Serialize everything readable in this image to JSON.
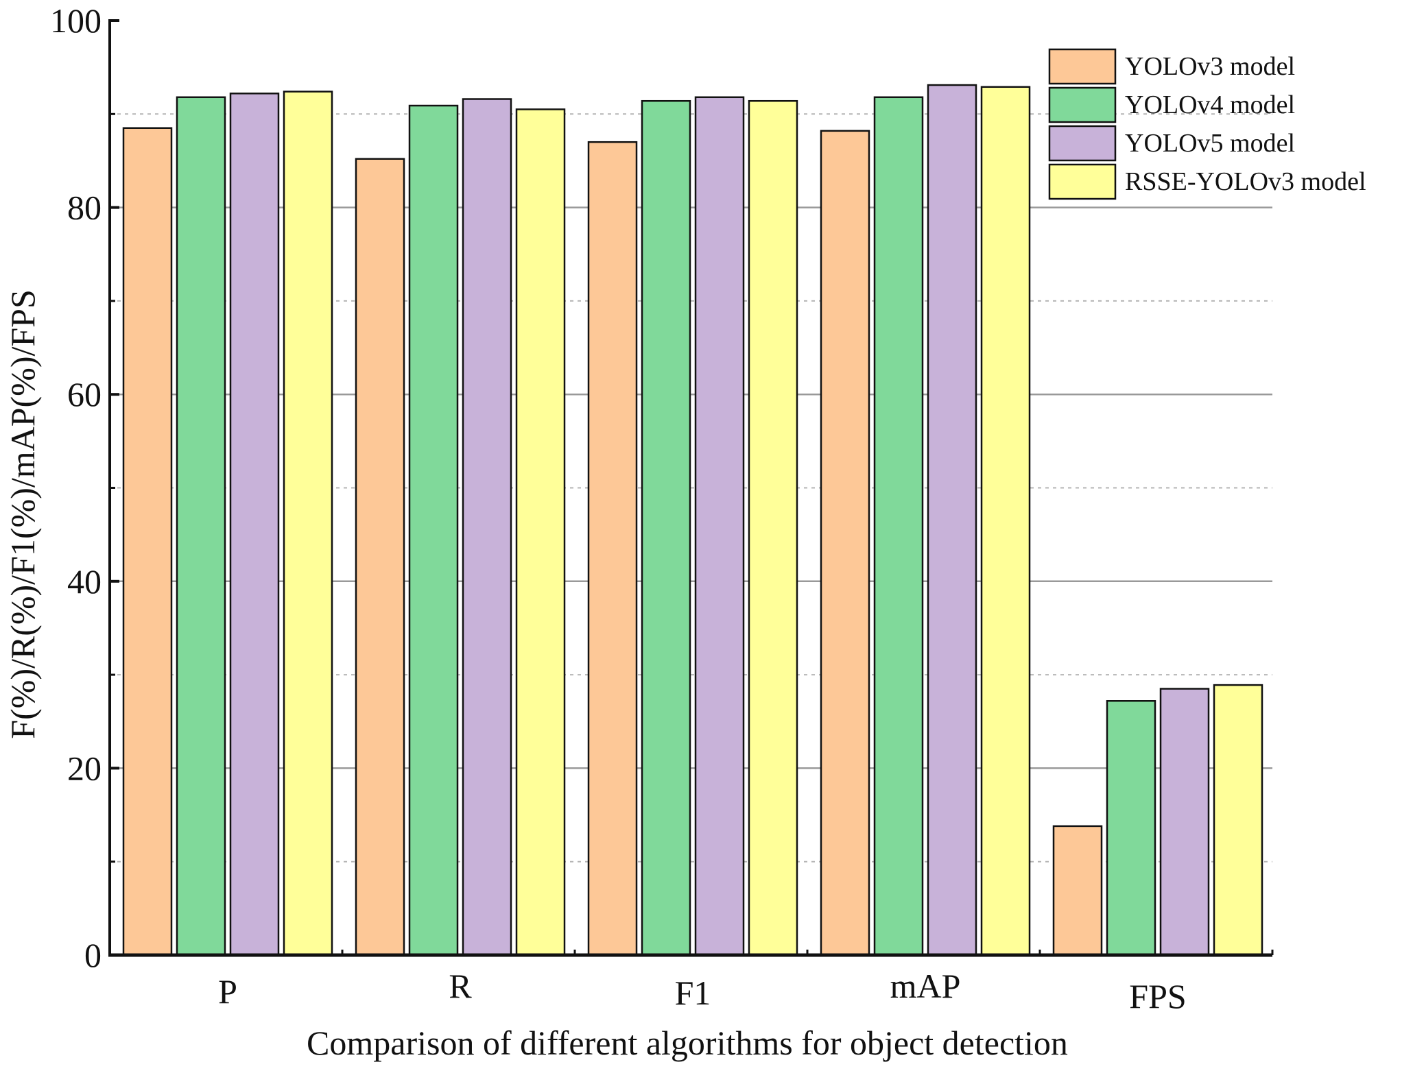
{
  "chart_data": {
    "type": "bar",
    "title": "",
    "xlabel": "Comparison of different algorithms for object detection",
    "ylabel": "F(%)/R(%)/F1(%)/mAP(%)/FPS",
    "ylim": [
      0,
      100
    ],
    "yticks": [
      "0",
      "20",
      "40",
      "60",
      "80",
      "100"
    ],
    "grid": true,
    "legend_position": "top-right",
    "categories": [
      "P",
      "R",
      "F1",
      "mAP",
      "FPS"
    ],
    "series": [
      {
        "name": "YOLOv3 model",
        "color": "#FDC897",
        "values": [
          88.5,
          85.2,
          87.0,
          88.2,
          13.8
        ]
      },
      {
        "name": "YOLOv4 model",
        "color": "#80D99A",
        "values": [
          91.8,
          90.9,
          91.4,
          91.8,
          27.2
        ]
      },
      {
        "name": "YOLOv5 model",
        "color": "#C8B2D9",
        "values": [
          92.2,
          91.6,
          91.8,
          93.1,
          28.5
        ]
      },
      {
        "name": "RSSE-YOLOv3 model",
        "color": "#FFFF99",
        "values": [
          92.4,
          90.5,
          91.4,
          92.9,
          28.9
        ]
      }
    ]
  }
}
